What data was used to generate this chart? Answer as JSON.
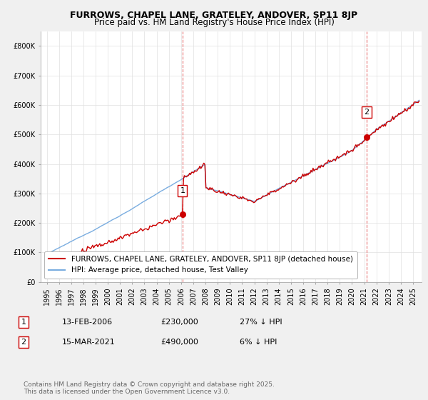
{
  "title": "FURROWS, CHAPEL LANE, GRATELEY, ANDOVER, SP11 8JP",
  "subtitle": "Price paid vs. HM Land Registry's House Price Index (HPI)",
  "ylim": [
    0,
    850000
  ],
  "yticks": [
    0,
    100000,
    200000,
    300000,
    400000,
    500000,
    600000,
    700000,
    800000
  ],
  "ytick_labels": [
    "£0",
    "£100K",
    "£200K",
    "£300K",
    "£400K",
    "£500K",
    "£600K",
    "£700K",
    "£800K"
  ],
  "xlim_start": 1994.5,
  "xlim_end": 2025.7,
  "sale1_x": 2006.12,
  "sale1_y": 230000,
  "sale1_label": "1",
  "sale2_x": 2021.21,
  "sale2_y": 490000,
  "sale2_label": "2",
  "sale_color": "#cc0000",
  "hpi_color": "#7aade0",
  "vline_color": "#e87070",
  "legend_sale_label": "FURROWS, CHAPEL LANE, GRATELEY, ANDOVER, SP11 8JP (detached house)",
  "legend_hpi_label": "HPI: Average price, detached house, Test Valley",
  "annotation1_date": "13-FEB-2006",
  "annotation1_price": "£230,000",
  "annotation1_hpi": "27% ↓ HPI",
  "annotation2_date": "15-MAR-2021",
  "annotation2_price": "£490,000",
  "annotation2_hpi": "6% ↓ HPI",
  "footnote": "Contains HM Land Registry data © Crown copyright and database right 2025.\nThis data is licensed under the Open Government Licence v3.0.",
  "bg_color": "#f0f0f0",
  "plot_bg_color": "#ffffff",
  "title_fontsize": 9,
  "subtitle_fontsize": 8.5,
  "tick_fontsize": 7,
  "legend_fontsize": 7.5,
  "annotation_fontsize": 8,
  "footnote_fontsize": 6.5
}
